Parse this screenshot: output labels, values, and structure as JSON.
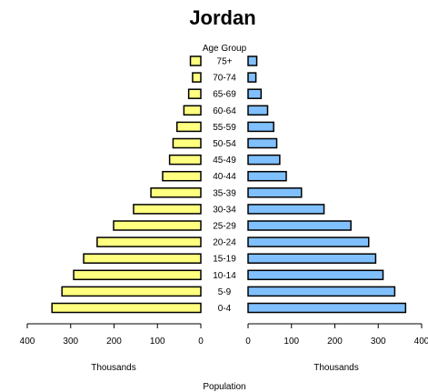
{
  "chart_data": {
    "type": "bar",
    "title": "Jordan",
    "center_label": "Age Group",
    "xlabel": "Population",
    "left_axis_label": "Thousands",
    "right_axis_label": "Thousands",
    "categories": [
      "0-4",
      "5-9",
      "10-14",
      "15-19",
      "20-24",
      "25-29",
      "30-34",
      "35-39",
      "40-44",
      "45-49",
      "50-54",
      "55-59",
      "60-64",
      "65-69",
      "70-74",
      "75+"
    ],
    "series": [
      {
        "side": "left",
        "color": "#ffff80",
        "values": [
          343,
          320,
          293,
          270,
          239,
          201,
          155,
          115,
          88,
          72,
          64,
          55,
          39,
          28,
          19,
          24
        ]
      },
      {
        "side": "right",
        "color": "#80c0ff",
        "values": [
          363,
          338,
          311,
          294,
          278,
          237,
          175,
          123,
          88,
          73,
          66,
          59,
          45,
          30,
          18,
          20
        ]
      }
    ],
    "left_axis": {
      "range": [
        400,
        0
      ],
      "ticks": [
        "400",
        "300",
        "200",
        "100",
        "0"
      ]
    },
    "right_axis": {
      "range": [
        0,
        400
      ],
      "ticks": [
        "0",
        "100",
        "200",
        "300",
        "400"
      ]
    },
    "grid": false
  }
}
